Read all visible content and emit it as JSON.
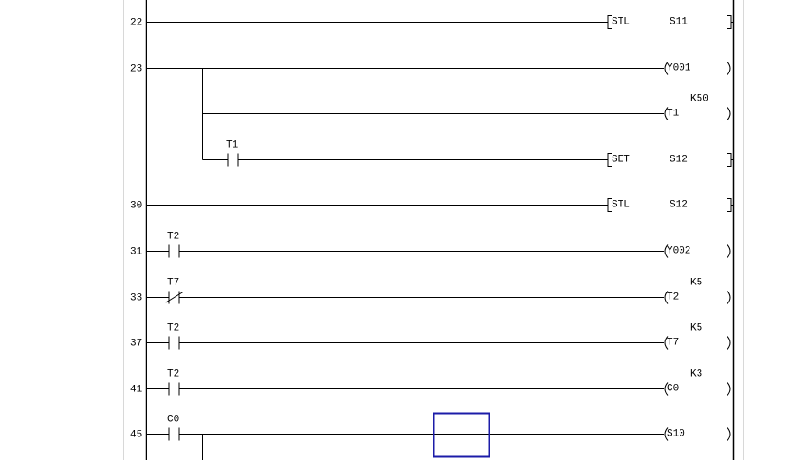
{
  "colors": {
    "line": "#000000",
    "rail_guide": "#d8d8d8",
    "cursor": "#1c1ca8"
  },
  "rungs": [
    {
      "step": "22",
      "contacts": [],
      "output": {
        "kind": "instruction",
        "op": "STL",
        "operand": "S11"
      }
    },
    {
      "step": "23",
      "contacts": [],
      "output": {
        "kind": "coil",
        "operand": "Y001"
      },
      "branches": [
        {
          "contacts": [],
          "output": {
            "kind": "coil",
            "operand": "T1",
            "preset": "K50"
          }
        },
        {
          "contacts": [
            {
              "label": "T1",
              "type": "no"
            }
          ],
          "output": {
            "kind": "instruction",
            "op": "SET",
            "operand": "S12"
          }
        }
      ]
    },
    {
      "step": "30",
      "contacts": [],
      "output": {
        "kind": "instruction",
        "op": "STL",
        "operand": "S12"
      }
    },
    {
      "step": "31",
      "contacts": [
        {
          "label": "T2",
          "type": "no"
        }
      ],
      "output": {
        "kind": "coil",
        "operand": "Y002"
      }
    },
    {
      "step": "33",
      "contacts": [
        {
          "label": "T7",
          "type": "nc"
        }
      ],
      "output": {
        "kind": "coil",
        "operand": "T2",
        "preset": "K5"
      }
    },
    {
      "step": "37",
      "contacts": [
        {
          "label": "T2",
          "type": "no"
        }
      ],
      "output": {
        "kind": "coil",
        "operand": "T7",
        "preset": "K5"
      }
    },
    {
      "step": "41",
      "contacts": [
        {
          "label": "T2",
          "type": "no"
        }
      ],
      "output": {
        "kind": "coil",
        "operand": "C0",
        "preset": "K3"
      }
    },
    {
      "step": "45",
      "contacts": [
        {
          "label": "C0",
          "type": "no"
        }
      ],
      "output": {
        "kind": "coil",
        "operand": "S10"
      },
      "continues_below": true
    }
  ],
  "cursor": {
    "rung_step": "45"
  }
}
